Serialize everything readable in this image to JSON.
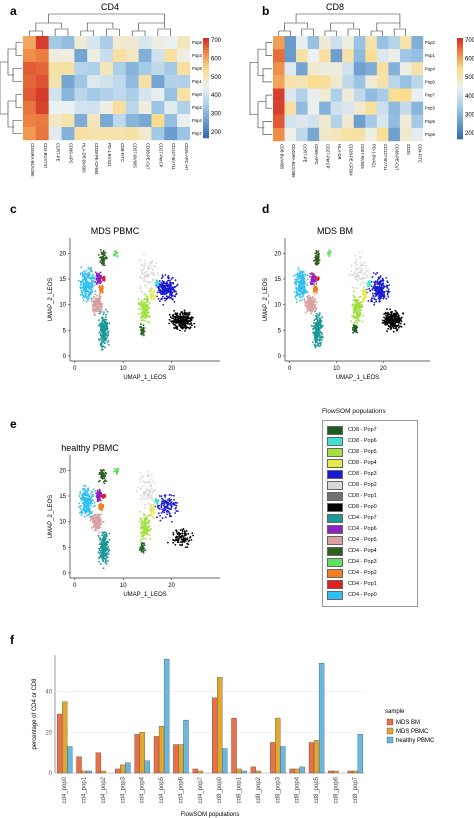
{
  "panels": {
    "a": "a",
    "b": "b",
    "c": "c",
    "d": "d",
    "e": "e",
    "f": "f"
  },
  "heatmap_cd4": {
    "title": "CD4",
    "rows": [
      "Pop6",
      "Pop3",
      "Pop5",
      "Pop1",
      "Pop0",
      "Pop2",
      "Pop4",
      "Pop7"
    ],
    "cols": [
      "CD45RA-BUV395",
      "CD4-BUV737",
      "CCR7-PE",
      "CD95-APC",
      "HLA-DR-BV605",
      "CD28-PE-CF594",
      "PD-1-BV421",
      "CD8-FITC",
      "CD57-BV605",
      "CD38-PE-Cy7",
      "CD27-PerCP",
      "CD127-BV711",
      "CD25-APC-H7"
    ],
    "scale": [
      "700",
      "600",
      "500",
      "400",
      "300",
      "200"
    ]
  },
  "heatmap_cd8": {
    "title": "CD8",
    "rows": [
      "Pop2",
      "Pop1",
      "Pop4",
      "Pop0",
      "Pop7",
      "Pop3",
      "Pop5",
      "Pop6"
    ],
    "cols": [
      "CD8-BUV805",
      "CD45RA-BUV395",
      "CCR7-PE",
      "CD95-APC",
      "CD27-PerCP",
      "HLA-DR",
      "CD28-PE-CF594",
      "CD57-BV605",
      "PD-1-BV421",
      "CD127-BV711",
      "CD38-PE-Cy7",
      "CD25",
      "CD4-FITC"
    ],
    "scale": [
      "700",
      "600",
      "500",
      "400",
      "300",
      "200"
    ]
  },
  "umap": {
    "c_title": "MDS PBMC",
    "d_title": "MDS BM",
    "e_title": "healthy PBMC",
    "xlabel": "UMAP_1_LEOS",
    "ylabel": "UMAP_2_LEOS",
    "xticks": [
      "0",
      "10",
      "20"
    ],
    "yticks": [
      "0",
      "5",
      "10",
      "15",
      "20"
    ]
  },
  "legend": {
    "title": "FlowSOM populations",
    "items": [
      {
        "label": "CD8 - Pop7",
        "color": "#1b5e20"
      },
      {
        "label": "CD8 - Pop6",
        "color": "#40e0d0"
      },
      {
        "label": "CD8 - Pop5",
        "color": "#a0e040"
      },
      {
        "label": "CD8 - Pop4",
        "color": "#e8e84a"
      },
      {
        "label": "CD8 - Pop3",
        "color": "#1a1ad0"
      },
      {
        "label": "CD8 - Pop2",
        "color": "#d8d8d8"
      },
      {
        "label": "CD8 - Pop1",
        "color": "#707070"
      },
      {
        "label": "CD8 - Pop0",
        "color": "#000000"
      },
      {
        "label": "CD4 - Pop7",
        "color": "#1a9898"
      },
      {
        "label": "CD4 - Pop6",
        "color": "#9020c0"
      },
      {
        "label": "CD4 - Pop5",
        "color": "#d8a0a0"
      },
      {
        "label": "CD4 - Pop4",
        "color": "#306020"
      },
      {
        "label": "CD4 - Pop3",
        "color": "#60e060"
      },
      {
        "label": "CD4 - Pop2",
        "color": "#f08020"
      },
      {
        "label": "CD4 - Pop1",
        "color": "#e02020"
      },
      {
        "label": "CD4 - Pop0",
        "color": "#30c0f0"
      }
    ]
  },
  "chart_data": {
    "type": "bar",
    "title": "",
    "xlabel": "FlowSOM populations",
    "ylabel": "percentage of CD4 or CD8",
    "ylim": [
      0,
      58
    ],
    "yticks": [
      0,
      20,
      40
    ],
    "categories": [
      "cd4_pop0",
      "cd4_pop1",
      "cd4_pop2",
      "cd4_pop3",
      "cd4_pop4",
      "cd4_pop5",
      "cd4_pop6",
      "cd4_pop7",
      "cd8_pop0",
      "cd8_pop1",
      "cd8_pop2",
      "cd8_pop3",
      "cd8_pop4",
      "cd8_pop5",
      "cd8_pop6",
      "cd8_pop7"
    ],
    "legend_title": "sample",
    "series": [
      {
        "name": "MDS BM",
        "color": "#e8704a",
        "values": [
          29,
          8,
          10,
          2,
          19,
          18,
          14,
          2,
          37,
          27,
          3,
          15,
          2,
          15,
          1,
          1
        ]
      },
      {
        "name": "MDS PBMC",
        "color": "#e0a830",
        "values": [
          35,
          1,
          1,
          4,
          20,
          23,
          14,
          1,
          47,
          2,
          1,
          27,
          2,
          16,
          1,
          1
        ]
      },
      {
        "name": "healthy PBMC",
        "color": "#6ab8e0",
        "values": [
          13,
          1,
          0,
          5,
          6,
          56,
          26,
          0,
          12,
          1,
          0,
          13,
          3,
          54,
          0,
          19
        ]
      }
    ]
  }
}
